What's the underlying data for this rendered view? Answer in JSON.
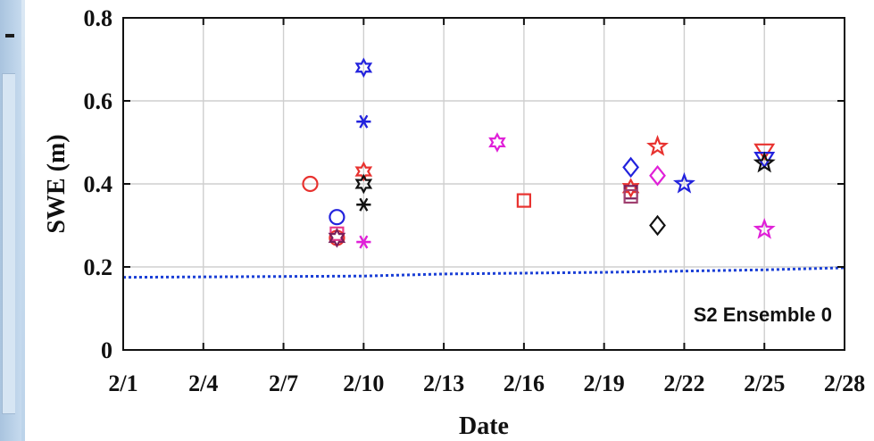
{
  "chart_data": {
    "type": "scatter",
    "title": "",
    "xlabel": "Date",
    "ylabel": "SWE (m)",
    "x_ticks": [
      "2/1",
      "2/4",
      "2/7",
      "2/10",
      "2/13",
      "2/16",
      "2/19",
      "2/22",
      "2/25",
      "2/28"
    ],
    "y_ticks": [
      "0",
      "0.2",
      "0.4",
      "0.6",
      "0.8"
    ],
    "xlim": [
      "2/1",
      "2/28"
    ],
    "ylim": [
      0,
      0.8
    ],
    "grid": true,
    "annotation": "S2 Ensemble 0",
    "baseline": {
      "style": "dotted",
      "color": "#1a3fd6",
      "points": [
        [
          "2/1",
          0.175
        ],
        [
          "2/10",
          0.178
        ],
        [
          "2/13",
          0.183
        ],
        [
          "2/19",
          0.187
        ],
        [
          "2/25",
          0.193
        ],
        [
          "2/28",
          0.198
        ]
      ]
    },
    "points": [
      {
        "date": "2/8",
        "y": 0.4,
        "marker": "circle",
        "color": "#e8322f"
      },
      {
        "date": "2/9",
        "y": 0.32,
        "marker": "circle",
        "color": "#2222dd"
      },
      {
        "date": "2/9",
        "y": 0.28,
        "marker": "square",
        "color": "#e83a8a"
      },
      {
        "date": "2/9",
        "y": 0.27,
        "marker": "circle",
        "color": "#e8322f"
      },
      {
        "date": "2/9",
        "y": 0.27,
        "marker": "star6",
        "color": "#7a1f5c"
      },
      {
        "date": "2/10",
        "y": 0.68,
        "marker": "star6",
        "color": "#2222dd"
      },
      {
        "date": "2/10",
        "y": 0.55,
        "marker": "asterisk",
        "color": "#2222dd"
      },
      {
        "date": "2/10",
        "y": 0.43,
        "marker": "star6",
        "color": "#e8322f"
      },
      {
        "date": "2/10",
        "y": 0.4,
        "marker": "star6",
        "color": "#111111"
      },
      {
        "date": "2/10",
        "y": 0.35,
        "marker": "asterisk",
        "color": "#111111"
      },
      {
        "date": "2/10",
        "y": 0.26,
        "marker": "asterisk",
        "color": "#e020d8"
      },
      {
        "date": "2/15",
        "y": 0.5,
        "marker": "star6",
        "color": "#e020d8"
      },
      {
        "date": "2/16",
        "y": 0.36,
        "marker": "square",
        "color": "#e8322f"
      },
      {
        "date": "2/20",
        "y": 0.44,
        "marker": "diamond",
        "color": "#2222dd"
      },
      {
        "date": "2/20",
        "y": 0.39,
        "marker": "star6",
        "color": "#e8322f"
      },
      {
        "date": "2/20",
        "y": 0.38,
        "marker": "square",
        "color": "#7a1f5c"
      },
      {
        "date": "2/20",
        "y": 0.37,
        "marker": "square",
        "color": "#a04070"
      },
      {
        "date": "2/21",
        "y": 0.49,
        "marker": "star5",
        "color": "#e8322f"
      },
      {
        "date": "2/21",
        "y": 0.42,
        "marker": "diamond",
        "color": "#e020d8"
      },
      {
        "date": "2/21",
        "y": 0.3,
        "marker": "diamond",
        "color": "#111111"
      },
      {
        "date": "2/22",
        "y": 0.4,
        "marker": "star5",
        "color": "#2222dd"
      },
      {
        "date": "2/25",
        "y": 0.48,
        "marker": "triangle-down",
        "color": "#e8322f"
      },
      {
        "date": "2/25",
        "y": 0.46,
        "marker": "triangle-down",
        "color": "#2222dd"
      },
      {
        "date": "2/25",
        "y": 0.45,
        "marker": "star5",
        "color": "#111111"
      },
      {
        "date": "2/25",
        "y": 0.29,
        "marker": "star5",
        "color": "#e020d8"
      }
    ]
  }
}
